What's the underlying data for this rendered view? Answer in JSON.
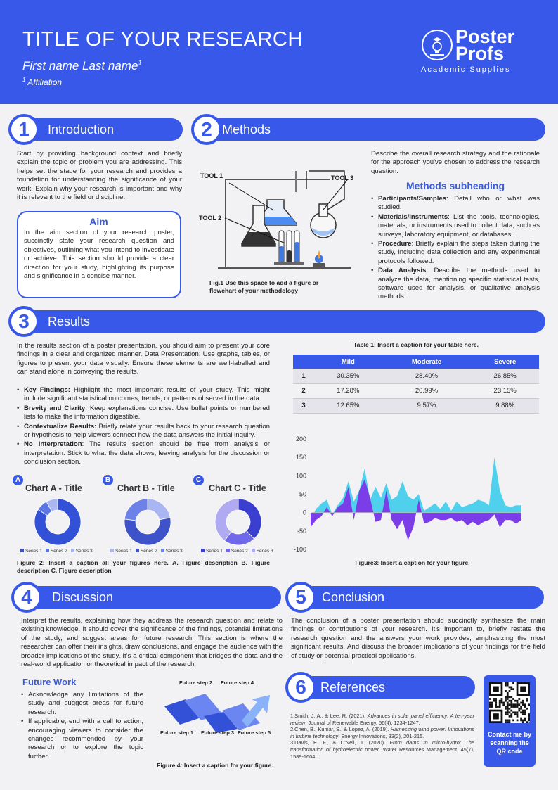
{
  "header": {
    "title": "TITLE OF YOUR RESEARCH",
    "author": "First name Last name",
    "author_sup": "1",
    "affiliation_sup": "1",
    "affiliation": "Affiliation",
    "logo_line1": "Poster",
    "logo_line2": "Profs",
    "logo_sub": "Academic Supplies"
  },
  "sections": {
    "s1": {
      "num": "1",
      "title": "Introduction"
    },
    "s2": {
      "num": "2",
      "title": "Methods"
    },
    "s3": {
      "num": "3",
      "title": "Results"
    },
    "s4": {
      "num": "4",
      "title": "Discussion"
    },
    "s5": {
      "num": "5",
      "title": "Conclusion"
    },
    "s6": {
      "num": "6",
      "title": "References"
    }
  },
  "intro": {
    "text": "Start by providing background context and briefly explain the topic or problem you are addressing. This helps set the stage for your research and provides a foundation for understanding the significance of your work. Explain why your research is important and why it is relevant to the field or discipline.",
    "aim_title": "Aim",
    "aim_text": "In the aim section of your research poster, succinctly state your research question and objectives, outlining what you intend to investigate or achieve. This section should provide a clear direction for your study, highlighting its purpose and significance in a concise manner."
  },
  "methods": {
    "tool1": "TOOL 1",
    "tool2": "TOOL 2",
    "tool3": "TOOL 3",
    "fig_caption": "Fig.1 Use this space to add a figure or flowchart of your methodology",
    "intro": "Describe the overall research strategy and the rationale for the approach you've chosen to address the research question.",
    "subheading": "Methods subheading",
    "bullets": [
      {
        "bold": "Participants/Samples",
        "text": ": Detail who or what was studied."
      },
      {
        "bold": "Materials/Instruments",
        "text": ": List the tools, technologies, materials, or instruments used to collect data, such as surveys, laboratory equipment, or databases."
      },
      {
        "bold": "Procedure",
        "text": ": Briefly explain the steps taken during the study, including data collection and any experimental protocols followed."
      },
      {
        "bold": "Data Analysis",
        "text": ": Describe the methods used to analyze the data, mentioning specific statistical tests, software used for analysis, or qualitative analysis methods."
      }
    ]
  },
  "results": {
    "text": "In the results section of a poster presentation, you should aim to present your core findings in a clear and organized manner. Data Presentation: Use graphs, tables, or figures to present your data visually. Ensure these elements are well-labelled and can stand alone in conveying the results.",
    "bullets": [
      {
        "bold": "Key Findings:",
        "text": " Highlight the most important results of your study. This might include significant statistical outcomes, trends, or patterns observed in the data."
      },
      {
        "bold": "Brevity and Clarity",
        "text": ": Keep explanations concise. Use bullet points or numbered lists to make the information digestible."
      },
      {
        "bold": "Contextualize Results:",
        "text": " Briefly relate your results back to your research question or hypothesis to help viewers connect how the data answers the initial inquiry."
      },
      {
        "bold": "No Interpretation",
        "text": ": The results section should be free from analysis or interpretation. Stick to what the data shows, leaving analysis for the discussion or conclusion section."
      }
    ],
    "table_caption": "Table 1: Insert a caption for your table here.",
    "table": {
      "headers": [
        "",
        "Mild",
        "Moderate",
        "Severe"
      ],
      "rows": [
        [
          "1",
          "30.35%",
          "28.40%",
          "26.85%"
        ],
        [
          "2",
          "17.28%",
          "20.99%",
          "23.15%"
        ],
        [
          "3",
          "12.65%",
          "9.57%",
          "9.88%"
        ]
      ]
    },
    "fig2_caption": "Figure 2: Insert a caption all your figures here. A. Figure description B. Figure description C. Figure description",
    "fig3_caption": "Figure3: Insert a caption for your figure."
  },
  "chart_data": [
    {
      "type": "pie",
      "letter": "A",
      "title": "Chart A - Title",
      "categories": [
        "Series 1",
        "Series 2",
        "Series 3"
      ],
      "values": [
        84,
        8,
        8
      ],
      "colors": [
        "#3351d6",
        "#5d76e6",
        "#a9b6f2"
      ]
    },
    {
      "type": "pie",
      "letter": "B",
      "title": "Chart B - Title",
      "categories": [
        "Series 1",
        "Series 2",
        "Series 3"
      ],
      "values": [
        22,
        55,
        23
      ],
      "colors": [
        "#a9b6f2",
        "#3e52c9",
        "#6c82e8"
      ]
    },
    {
      "type": "pie",
      "letter": "C",
      "title": "Chart C - Title",
      "categories": [
        "Series 1",
        "Series 2",
        "Series 3"
      ],
      "values": [
        38,
        22,
        40
      ],
      "colors": [
        "#3a3fd0",
        "#6f68e8",
        "#b0aaf2"
      ]
    },
    {
      "type": "area",
      "title": "",
      "ylim": [
        -100,
        200
      ],
      "yticks": [
        -100,
        -50,
        0,
        50,
        100,
        150,
        200
      ],
      "x": [
        1,
        2,
        3,
        4,
        5,
        6,
        7,
        8,
        9,
        10,
        11,
        12,
        13,
        14,
        15,
        16,
        17,
        18,
        19,
        20,
        21,
        22,
        23,
        24,
        25,
        26,
        27,
        28,
        29,
        30,
        31,
        32,
        33,
        34,
        35,
        36,
        37,
        38,
        39,
        40
      ],
      "series": [
        {
          "values": [
            -20,
            10,
            25,
            35,
            -5,
            20,
            40,
            85,
            30,
            60,
            120,
            35,
            70,
            40,
            80,
            35,
            45,
            85,
            45,
            35,
            50,
            5,
            15,
            25,
            10,
            30,
            5,
            30,
            15,
            20,
            25,
            35,
            30,
            20,
            150,
            60,
            20,
            15,
            20,
            20
          ],
          "color": "#4fd0ec"
        },
        {
          "values": [
            -40,
            -20,
            -10,
            15,
            -10,
            15,
            25,
            70,
            -20,
            60,
            90,
            40,
            -25,
            -20,
            60,
            -20,
            -45,
            -20,
            -75,
            -40,
            35,
            -30,
            -25,
            -15,
            -20,
            -20,
            -15,
            -25,
            -20,
            -35,
            -25,
            -35,
            -25,
            -20,
            -5,
            -40,
            -20,
            -20,
            -30,
            -20
          ],
          "color": "#7a3de8"
        }
      ]
    }
  ],
  "discussion": {
    "text": "Interpret the results, explaining how they address the research question and relate to existing knowledge. It should cover the significance of the findings, potential limitations of the study, and suggest areas for future research. This section is where the researcher can offer their insights, draw conclusions, and engage the audience with the broader implications of the study. It's a critical component that bridges the data and the real-world application or theoretical impact of the research.",
    "future_title": "Future Work",
    "future_bullets": [
      "Acknowledge any limitations of the study and suggest areas for future research.",
      "If applicable, end with a call to action, encouraging viewers to consider the changes recommended by your research or to explore the topic further."
    ],
    "steps": [
      "Future step 1",
      "Future step 2",
      "Future step 3",
      "Future step 4",
      "Future step 5"
    ],
    "fig4_caption": "Figure 4: Insert a caption for your figure."
  },
  "conclusion": {
    "text": "The conclusion of a poster presentation should succinctly synthesize the main findings or contributions of your research. It's important to, briefly restate the research question and the answers your work provides, emphasizing the most significant results. And discuss the broader implications of your findings for the field of study or potential practical applications."
  },
  "references": [
    {
      "pre": "1.Smith, J. A., & Lee, R. (2021). ",
      "title": "Advances in solar panel efficiency: A ten-year review",
      "post": ". Journal of Renewable Energy, 56(4), 1234-1247."
    },
    {
      "pre": "2.Chen, B., Kumar, S., & Lopez, A. (2019). ",
      "title": "Harnessing wind power: Innovations in turbine technology",
      "post": ". Energy Innovations, 33(2), 201-215."
    },
    {
      "pre": "3.Davis, E. F., & O'Neil, T. (2020). ",
      "title": "From dams to micro-hydro: The transformation of hydroelectric power",
      "post": ". Water Resources Management, 45(7), 1589-1604."
    }
  ],
  "qr": {
    "text": "Contact me by scanning the QR code"
  }
}
